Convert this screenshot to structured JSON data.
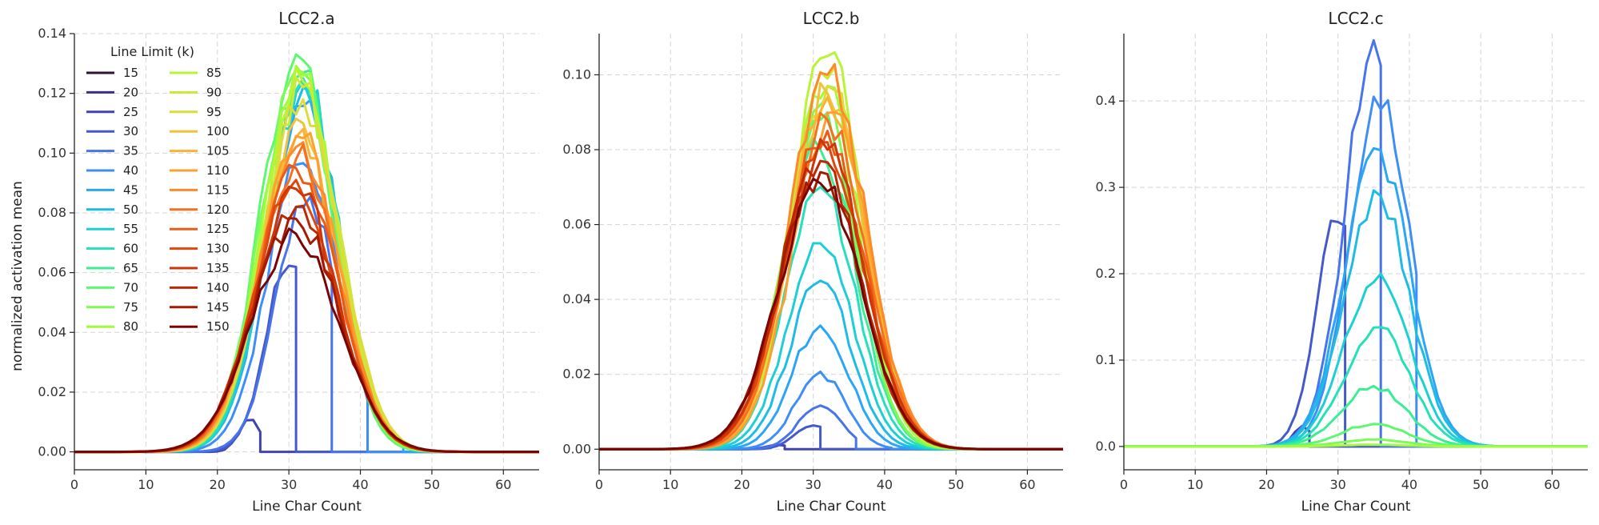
{
  "figure": {
    "shared_ylabel": "normalized activation mean"
  },
  "legend": {
    "title": "Line Limit (k)",
    "entries": [
      {
        "k": "15",
        "color": "#30123b"
      },
      {
        "k": "20",
        "color": "#3b2f8a"
      },
      {
        "k": "25",
        "color": "#4145ab"
      },
      {
        "k": "30",
        "color": "#4559cb"
      },
      {
        "k": "35",
        "color": "#4773eb"
      },
      {
        "k": "40",
        "color": "#3e8ef8"
      },
      {
        "k": "45",
        "color": "#2ba5f5"
      },
      {
        "k": "50",
        "color": "#1ebce5"
      },
      {
        "k": "55",
        "color": "#1ccfd5"
      },
      {
        "k": "60",
        "color": "#25e0b8"
      },
      {
        "k": "65",
        "color": "#3aee95"
      },
      {
        "k": "70",
        "color": "#5cf86e"
      },
      {
        "k": "75",
        "color": "#7efa56"
      },
      {
        "k": "80",
        "color": "#a0fc3c"
      },
      {
        "k": "85",
        "color": "#b9f435"
      },
      {
        "k": "90",
        "color": "#cbe939"
      },
      {
        "k": "95",
        "color": "#dcdc3a"
      },
      {
        "k": "100",
        "color": "#f2c23a"
      },
      {
        "k": "105",
        "color": "#fbb335"
      },
      {
        "k": "110",
        "color": "#fea030"
      },
      {
        "k": "115",
        "color": "#fc8a2a"
      },
      {
        "k": "120",
        "color": "#f6711f"
      },
      {
        "k": "125",
        "color": "#eb5b16"
      },
      {
        "k": "130",
        "color": "#df470d"
      },
      {
        "k": "135",
        "color": "#cf3607"
      },
      {
        "k": "140",
        "color": "#bb2804"
      },
      {
        "k": "145",
        "color": "#a41b02"
      },
      {
        "k": "150",
        "color": "#7a0403"
      }
    ]
  },
  "chart_data": [
    {
      "type": "line",
      "title": "LCC2.a",
      "xlabel": "Line Char Count",
      "ylabel": "normalized activation mean",
      "xlim": [
        0,
        65
      ],
      "ylim": [
        -0.006,
        0.14
      ],
      "xticks": [
        0,
        10,
        20,
        30,
        40,
        50,
        60
      ],
      "yticks": [
        0.0,
        0.02,
        0.04,
        0.06,
        0.08,
        0.1,
        0.12,
        0.14
      ],
      "ytick_decimals": 2,
      "grid": true,
      "legend": "top-left",
      "series": [
        {
          "name": "15",
          "values": []
        },
        {
          "name": "20",
          "values": []
        },
        {
          "name": "25",
          "params": {
            "mean": 24.5,
            "sigma": 1.5,
            "peak": 0.011,
            "cut": 26
          }
        },
        {
          "name": "30",
          "params": {
            "mean": 30.0,
            "sigma": 3.2,
            "peak": 0.065,
            "cut": 31
          }
        },
        {
          "name": "35",
          "params": {
            "mean": 32.5,
            "sigma": 4.2,
            "peak": 0.086,
            "cut": 36
          }
        },
        {
          "name": "40",
          "params": {
            "mean": 32.0,
            "sigma": 4.8,
            "peak": 0.1,
            "cut": 41
          }
        },
        {
          "name": "45",
          "params": {
            "mean": 32.0,
            "sigma": 5.0,
            "peak": 0.118,
            "cut": 46
          }
        },
        {
          "name": "50",
          "params": {
            "mean": 32.0,
            "sigma": 5.0,
            "peak": 0.122
          }
        },
        {
          "name": "55",
          "params": {
            "mean": 32.0,
            "sigma": 5.0,
            "peak": 0.124
          }
        },
        {
          "name": "60",
          "params": {
            "mean": 31.8,
            "sigma": 5.0,
            "peak": 0.125
          }
        },
        {
          "name": "65",
          "params": {
            "mean": 31.5,
            "sigma": 5.0,
            "peak": 0.127
          }
        },
        {
          "name": "70",
          "params": {
            "mean": 31.0,
            "sigma": 5.0,
            "peak": 0.133
          }
        },
        {
          "name": "75",
          "params": {
            "mean": 31.2,
            "sigma": 5.1,
            "peak": 0.128
          }
        },
        {
          "name": "80",
          "params": {
            "mean": 31.5,
            "sigma": 5.1,
            "peak": 0.126
          }
        },
        {
          "name": "85",
          "params": {
            "mean": 31.7,
            "sigma": 5.2,
            "peak": 0.124
          }
        },
        {
          "name": "90",
          "params": {
            "mean": 31.8,
            "sigma": 5.2,
            "peak": 0.122
          }
        },
        {
          "name": "95",
          "params": {
            "mean": 32.0,
            "sigma": 5.3,
            "peak": 0.118
          }
        },
        {
          "name": "100",
          "params": {
            "mean": 31.5,
            "sigma": 5.3,
            "peak": 0.11
          }
        },
        {
          "name": "105",
          "params": {
            "mean": 31.5,
            "sigma": 5.4,
            "peak": 0.108
          }
        },
        {
          "name": "110",
          "params": {
            "mean": 31.5,
            "sigma": 5.4,
            "peak": 0.105
          }
        },
        {
          "name": "115",
          "params": {
            "mean": 31.4,
            "sigma": 5.5,
            "peak": 0.102
          }
        },
        {
          "name": "120",
          "params": {
            "mean": 31.3,
            "sigma": 5.5,
            "peak": 0.098
          }
        },
        {
          "name": "125",
          "params": {
            "mean": 31.2,
            "sigma": 5.6,
            "peak": 0.095
          }
        },
        {
          "name": "130",
          "params": {
            "mean": 31.0,
            "sigma": 5.6,
            "peak": 0.091
          }
        },
        {
          "name": "135",
          "params": {
            "mean": 31.0,
            "sigma": 5.7,
            "peak": 0.088
          }
        },
        {
          "name": "140",
          "params": {
            "mean": 31.0,
            "sigma": 5.8,
            "peak": 0.082
          }
        },
        {
          "name": "145",
          "params": {
            "mean": 31.0,
            "sigma": 5.9,
            "peak": 0.078
          }
        },
        {
          "name": "150",
          "params": {
            "mean": 31.0,
            "sigma": 6.0,
            "peak": 0.073
          }
        }
      ]
    },
    {
      "type": "line",
      "title": "LCC2.b",
      "xlabel": "Line Char Count",
      "ylabel": "",
      "xlim": [
        0,
        65
      ],
      "ylim": [
        -0.0055,
        0.111
      ],
      "xticks": [
        0,
        10,
        20,
        30,
        40,
        50,
        60
      ],
      "yticks": [
        0.0,
        0.02,
        0.04,
        0.06,
        0.08,
        0.1
      ],
      "ytick_decimals": 2,
      "grid": true,
      "series": [
        {
          "name": "15",
          "values": []
        },
        {
          "name": "20",
          "values": []
        },
        {
          "name": "25",
          "params": {
            "mean": 25.0,
            "sigma": 1.5,
            "peak": 0.0012,
            "cut": 26
          }
        },
        {
          "name": "30",
          "params": {
            "mean": 30.0,
            "sigma": 2.5,
            "peak": 0.0065,
            "cut": 31
          }
        },
        {
          "name": "35",
          "params": {
            "mean": 31.0,
            "sigma": 3.0,
            "peak": 0.012,
            "cut": 36
          }
        },
        {
          "name": "40",
          "params": {
            "mean": 31.0,
            "sigma": 3.5,
            "peak": 0.02,
            "cut": 41
          }
        },
        {
          "name": "45",
          "params": {
            "mean": 31.0,
            "sigma": 4.0,
            "peak": 0.033
          }
        },
        {
          "name": "50",
          "params": {
            "mean": 31.0,
            "sigma": 4.3,
            "peak": 0.045
          }
        },
        {
          "name": "55",
          "params": {
            "mean": 31.0,
            "sigma": 4.6,
            "peak": 0.055
          }
        },
        {
          "name": "60",
          "params": {
            "mean": 31.0,
            "sigma": 4.8,
            "peak": 0.07
          }
        },
        {
          "name": "65",
          "params": {
            "mean": 31.0,
            "sigma": 5.0,
            "peak": 0.08
          }
        },
        {
          "name": "70",
          "params": {
            "mean": 31.0,
            "sigma": 5.0,
            "peak": 0.088
          }
        },
        {
          "name": "75",
          "params": {
            "mean": 31.0,
            "sigma": 5.0,
            "peak": 0.092
          }
        },
        {
          "name": "80",
          "params": {
            "mean": 31.5,
            "sigma": 5.0,
            "peak": 0.097
          }
        },
        {
          "name": "85",
          "params": {
            "mean": 32.0,
            "sigma": 5.1,
            "peak": 0.105
          }
        },
        {
          "name": "90",
          "params": {
            "mean": 32.0,
            "sigma": 5.1,
            "peak": 0.099
          }
        },
        {
          "name": "95",
          "params": {
            "mean": 32.0,
            "sigma": 5.2,
            "peak": 0.097
          }
        },
        {
          "name": "100",
          "params": {
            "mean": 32.0,
            "sigma": 5.2,
            "peak": 0.095
          }
        },
        {
          "name": "105",
          "params": {
            "mean": 32.0,
            "sigma": 5.3,
            "peak": 0.094
          }
        },
        {
          "name": "110",
          "params": {
            "mean": 32.5,
            "sigma": 5.3,
            "peak": 0.09
          }
        },
        {
          "name": "115",
          "params": {
            "mean": 32.0,
            "sigma": 5.4,
            "peak": 0.1
          }
        },
        {
          "name": "120",
          "params": {
            "mean": 32.0,
            "sigma": 5.4,
            "peak": 0.088
          }
        },
        {
          "name": "125",
          "params": {
            "mean": 31.5,
            "sigma": 5.5,
            "peak": 0.085
          }
        },
        {
          "name": "130",
          "params": {
            "mean": 31.5,
            "sigma": 5.5,
            "peak": 0.082
          }
        },
        {
          "name": "135",
          "params": {
            "mean": 31.5,
            "sigma": 5.6,
            "peak": 0.08
          }
        },
        {
          "name": "140",
          "params": {
            "mean": 31.0,
            "sigma": 5.6,
            "peak": 0.077
          }
        },
        {
          "name": "145",
          "params": {
            "mean": 31.0,
            "sigma": 5.7,
            "peak": 0.074
          }
        },
        {
          "name": "150",
          "params": {
            "mean": 31.0,
            "sigma": 5.8,
            "peak": 0.071
          }
        }
      ]
    },
    {
      "type": "line",
      "title": "LCC2.c",
      "xlabel": "Line Char Count",
      "ylabel": "",
      "xlim": [
        0,
        65
      ],
      "ylim": [
        -0.027,
        0.478
      ],
      "xticks": [
        0,
        10,
        20,
        30,
        40,
        50,
        60
      ],
      "yticks": [
        0.0,
        0.1,
        0.2,
        0.3,
        0.4
      ],
      "ytick_decimals": 1,
      "grid": true,
      "series": [
        {
          "name": "15",
          "values": []
        },
        {
          "name": "20",
          "values": []
        },
        {
          "name": "25",
          "params": {
            "mean": 25.0,
            "sigma": 1.2,
            "peak": 0.025,
            "cut": 26
          }
        },
        {
          "name": "30",
          "params": {
            "mean": 30.0,
            "sigma": 3.0,
            "peak": 0.27,
            "cut": 31
          }
        },
        {
          "name": "35",
          "params": {
            "mean": 35.0,
            "sigma": 4.0,
            "peak": 0.455,
            "cut": 36
          }
        },
        {
          "name": "40",
          "params": {
            "mean": 36.0,
            "sigma": 4.2,
            "peak": 0.405,
            "cut": 41
          }
        },
        {
          "name": "45",
          "params": {
            "mean": 35.5,
            "sigma": 4.5,
            "peak": 0.343
          }
        },
        {
          "name": "50",
          "params": {
            "mean": 35.5,
            "sigma": 4.5,
            "peak": 0.29
          }
        },
        {
          "name": "55",
          "params": {
            "mean": 35.5,
            "sigma": 4.5,
            "peak": 0.2
          }
        },
        {
          "name": "60",
          "params": {
            "mean": 35.5,
            "sigma": 4.5,
            "peak": 0.138
          }
        },
        {
          "name": "65",
          "params": {
            "mean": 35.0,
            "sigma": 4.5,
            "peak": 0.07
          }
        },
        {
          "name": "70",
          "params": {
            "mean": 35.0,
            "sigma": 4.5,
            "peak": 0.026
          }
        },
        {
          "name": "75",
          "params": {
            "mean": 35.0,
            "sigma": 4.5,
            "peak": 0.008
          }
        },
        {
          "name": "80",
          "params": {
            "mean": 35.0,
            "sigma": 4.5,
            "peak": 0.002
          }
        },
        {
          "name": "85",
          "values": []
        },
        {
          "name": "90",
          "values": []
        },
        {
          "name": "95",
          "values": []
        },
        {
          "name": "100",
          "values": []
        },
        {
          "name": "105",
          "values": []
        },
        {
          "name": "110",
          "values": []
        },
        {
          "name": "115",
          "values": []
        },
        {
          "name": "120",
          "values": []
        },
        {
          "name": "125",
          "values": []
        },
        {
          "name": "130",
          "values": []
        },
        {
          "name": "135",
          "values": []
        },
        {
          "name": "140",
          "values": []
        },
        {
          "name": "145",
          "values": []
        },
        {
          "name": "150",
          "values": []
        }
      ]
    }
  ]
}
